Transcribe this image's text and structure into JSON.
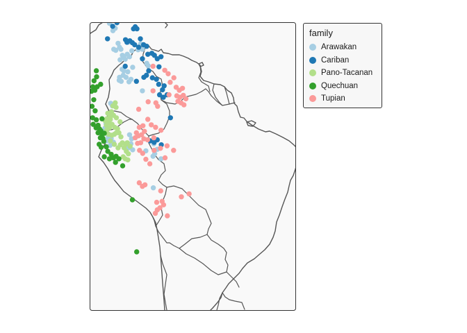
{
  "legend": {
    "title": "family",
    "items": [
      {
        "key": "arawakan",
        "label": "Arawakan",
        "color": "#a6cee3"
      },
      {
        "key": "cariban",
        "label": "Cariban",
        "color": "#1f78b4"
      },
      {
        "key": "pano",
        "label": "Pano-Tacanan",
        "color": "#b2df8a"
      },
      {
        "key": "quechuan",
        "label": "Quechuan",
        "color": "#33a02c"
      },
      {
        "key": "tupian",
        "label": "Tupian",
        "color": "#fb9a99"
      }
    ]
  },
  "map": {
    "panel_background": "#f9f9f9",
    "panel_border": "#333333",
    "land_outline": "#555555",
    "layers": [
      "coastline",
      "country-borders",
      "language-points"
    ]
  },
  "chart_data": {
    "type": "scatter",
    "title": "",
    "xlabel": "",
    "ylabel": "",
    "grid": false,
    "legend_position": "right-top",
    "legend_title": "family",
    "series": [
      {
        "name": "Arawakan",
        "color": "#a6cee3",
        "points": [
          [
            -73.0,
            11.3
          ],
          [
            -71.8,
            9.8
          ],
          [
            -71.0,
            10.3
          ],
          [
            -70.0,
            7.3
          ],
          [
            -71.5,
            6.1
          ],
          [
            -70.8,
            5.9
          ],
          [
            -69.5,
            6.5
          ],
          [
            -69.0,
            6.1
          ],
          [
            -68.5,
            4.9
          ],
          [
            -69.3,
            4.0
          ],
          [
            -68.0,
            4.5
          ],
          [
            -67.5,
            4.1
          ],
          [
            -66.8,
            5.1
          ],
          [
            -66.0,
            4.6
          ],
          [
            -65.2,
            5.8
          ],
          [
            -66.5,
            7.5
          ],
          [
            -63.0,
            6.0
          ],
          [
            -62.1,
            7.2
          ],
          [
            -61.5,
            6.1
          ],
          [
            -60.0,
            3.3
          ],
          [
            -59.5,
            2.8
          ],
          [
            -68.6,
            2.1
          ],
          [
            -68.0,
            1.8
          ],
          [
            -68.2,
            0.9
          ],
          [
            -69.5,
            0.5
          ],
          [
            -68.9,
            -0.3
          ],
          [
            -69.6,
            -0.1
          ],
          [
            -66.6,
            1.6
          ],
          [
            -67.2,
            0.5
          ],
          [
            -66.2,
            -0.4
          ],
          [
            -65.5,
            0.1
          ],
          [
            -64.9,
            2.5
          ],
          [
            -72.6,
            -4.7
          ],
          [
            -72.0,
            -5.2
          ],
          [
            -74.2,
            -8.8
          ],
          [
            -74.6,
            -9.7
          ],
          [
            -75.1,
            -10.3
          ],
          [
            -73.8,
            -10.7
          ],
          [
            -73.4,
            -11.3
          ],
          [
            -74.0,
            -12.2
          ],
          [
            -72.4,
            -11.7
          ],
          [
            -71.6,
            -12.5
          ],
          [
            -72.8,
            -13.1
          ],
          [
            -66.0,
            -11.0
          ],
          [
            -65.3,
            -11.8
          ],
          [
            -66.3,
            -13.6
          ],
          [
            -64.9,
            -14.0
          ],
          [
            -60.3,
            -14.2
          ],
          [
            -57.5,
            -12.8
          ],
          [
            -57.8,
            -15.3
          ],
          [
            -55.0,
            -15.8
          ],
          [
            -57.7,
            -21.6
          ],
          [
            -61.5,
            -2.2
          ],
          [
            -57.2,
            -14.8
          ],
          [
            -56.3,
            -13.9
          ],
          [
            -65.5,
            -12.8
          ]
        ]
      },
      {
        "name": "Cariban",
        "color": "#1f78b4",
        "points": [
          [
            -71.9,
            10.7
          ],
          [
            -70.4,
            11.4
          ],
          [
            -69.1,
            11.9
          ],
          [
            -64.6,
            10.2
          ],
          [
            -64.0,
            10.6
          ],
          [
            -63.4,
            10.2
          ],
          [
            -73.7,
            8.2
          ],
          [
            -67.4,
            8.0
          ],
          [
            -66.9,
            7.5
          ],
          [
            -65.9,
            7.8
          ],
          [
            -65.0,
            7.4
          ],
          [
            -64.2,
            7.0
          ],
          [
            -62.2,
            8.2
          ],
          [
            -61.1,
            7.0
          ],
          [
            -60.0,
            6.7
          ],
          [
            -62.8,
            6.5
          ],
          [
            -61.5,
            4.2
          ],
          [
            -59.6,
            5.1
          ],
          [
            -58.2,
            5.3
          ],
          [
            -57.3,
            4.9
          ],
          [
            -56.3,
            4.2
          ],
          [
            -55.7,
            2.6
          ],
          [
            -55.0,
            4.6
          ],
          [
            -59.3,
            1.8
          ],
          [
            -61.0,
            0.5
          ],
          [
            -60.1,
            0.9
          ],
          [
            -58.0,
            0.4
          ],
          [
            -56.6,
            0.1
          ],
          [
            -55.8,
            -0.9
          ],
          [
            -53.9,
            -1.2
          ],
          [
            -55.5,
            -3.0
          ],
          [
            -54.2,
            -3.5
          ],
          [
            -51.7,
            -7.6
          ],
          [
            -63.6,
            -0.3
          ],
          [
            -54.9,
            -13.0
          ],
          [
            -56.3,
            -12.0
          ],
          [
            -57.4,
            -12.5
          ],
          [
            -58.8,
            -12.2
          ],
          [
            -67.5,
            2.7
          ],
          [
            -54.5,
            -2.0
          ],
          [
            -52.9,
            -3.0
          ]
        ]
      },
      {
        "name": "Pano-Tacanan",
        "color": "#b2df8a",
        "points": [
          [
            -71.8,
            -5.2
          ],
          [
            -71.0,
            -4.6
          ],
          [
            -70.7,
            -5.5
          ],
          [
            -72.3,
            -6.4
          ],
          [
            -73.6,
            -6.7
          ],
          [
            -72.9,
            -7.3
          ],
          [
            -73.9,
            -7.8
          ],
          [
            -72.7,
            -7.9
          ],
          [
            -71.6,
            -7.1
          ],
          [
            -74.1,
            -9.1
          ],
          [
            -73.1,
            -8.6
          ],
          [
            -74.5,
            -8.2
          ],
          [
            -73.0,
            -9.6
          ],
          [
            -72.1,
            -8.9
          ],
          [
            -71.2,
            -9.5
          ],
          [
            -70.2,
            -9.8
          ],
          [
            -69.7,
            -10.6
          ],
          [
            -70.6,
            -10.6
          ],
          [
            -71.3,
            -10.9
          ],
          [
            -72.2,
            -11.1
          ],
          [
            -69.0,
            -11.4
          ],
          [
            -68.5,
            -12.6
          ],
          [
            -67.4,
            -12.9
          ],
          [
            -66.8,
            -12.6
          ],
          [
            -67.9,
            -13.6
          ],
          [
            -67.1,
            -14.3
          ],
          [
            -66.4,
            -14.8
          ],
          [
            -65.8,
            -13.3
          ],
          [
            -68.2,
            -15.4
          ],
          [
            -67.5,
            -15.8
          ],
          [
            -66.6,
            -16.0
          ],
          [
            -69.2,
            -13.0
          ],
          [
            -70.0,
            -13.6
          ],
          [
            -71.3,
            -12.9
          ],
          [
            -72.7,
            -12.2
          ],
          [
            -73.3,
            -10.9
          ],
          [
            -74.0,
            -10.1
          ],
          [
            -70.6,
            -7.6
          ],
          [
            -69.3,
            -8.4
          ]
        ]
      },
      {
        "name": "Quechuan",
        "color": "#33a02c",
        "points": [
          [
            -77.6,
            1.8
          ],
          [
            -77.5,
            0.6
          ],
          [
            -78.4,
            -0.2
          ],
          [
            -78.8,
            -1.4
          ],
          [
            -79.3,
            -2.3
          ],
          [
            -78.1,
            -2.1
          ],
          [
            -77.3,
            -1.4
          ],
          [
            -76.1,
            -0.9
          ],
          [
            -78.5,
            -4.0
          ],
          [
            -79.1,
            -5.3
          ],
          [
            -78.0,
            -6.2
          ],
          [
            -78.9,
            -7.6
          ],
          [
            -77.6,
            -8.0
          ],
          [
            -78.7,
            -8.9
          ],
          [
            -77.7,
            -9.6
          ],
          [
            -77.0,
            -9.1
          ],
          [
            -76.5,
            -9.8
          ],
          [
            -77.0,
            -10.6
          ],
          [
            -76.0,
            -10.2
          ],
          [
            -75.6,
            -10.9
          ],
          [
            -76.2,
            -11.6
          ],
          [
            -75.3,
            -11.7
          ],
          [
            -75.0,
            -12.3
          ],
          [
            -76.6,
            -12.9
          ],
          [
            -75.9,
            -13.5
          ],
          [
            -74.1,
            -13.4
          ],
          [
            -73.6,
            -14.3
          ],
          [
            -72.4,
            -14.9
          ],
          [
            -71.6,
            -15.6
          ],
          [
            -70.7,
            -15.3
          ],
          [
            -69.7,
            -15.8
          ],
          [
            -70.9,
            -16.5
          ],
          [
            -68.4,
            -17.2
          ],
          [
            -74.8,
            -15.4
          ],
          [
            -73.0,
            -15.8
          ],
          [
            -65.0,
            -24.0
          ],
          [
            -63.5,
            -34.4
          ],
          [
            -75.6,
            -7.8
          ],
          [
            -74.8,
            -10.7
          ]
        ]
      },
      {
        "name": "Tupian",
        "color": "#fb9a99",
        "points": [
          [
            -57.8,
            2.7
          ],
          [
            -53.7,
            1.9
          ],
          [
            -52.5,
            1.2
          ],
          [
            -50.5,
            0.4
          ],
          [
            -51.8,
            -0.5
          ],
          [
            -49.7,
            -1.5
          ],
          [
            -48.6,
            -2.1
          ],
          [
            -47.5,
            -1.7
          ],
          [
            -49.5,
            -3.2
          ],
          [
            -48.4,
            -3.5
          ],
          [
            -47.2,
            -3.1
          ],
          [
            -46.3,
            -3.8
          ],
          [
            -49.1,
            -4.3
          ],
          [
            -48.0,
            -4.6
          ],
          [
            -47.0,
            -5.0
          ],
          [
            -52.2,
            -3.0
          ],
          [
            -59.5,
            -4.4
          ],
          [
            -56.2,
            -5.3
          ],
          [
            -57.8,
            -2.2
          ],
          [
            -62.6,
            -9.5
          ],
          [
            -61.3,
            -9.2
          ],
          [
            -60.8,
            -10.3
          ],
          [
            -61.8,
            -11.0
          ],
          [
            -62.9,
            -11.2
          ],
          [
            -63.6,
            -10.6
          ],
          [
            -61.0,
            -11.8
          ],
          [
            -62.1,
            -12.6
          ],
          [
            -63.2,
            -12.7
          ],
          [
            -64.0,
            -11.6
          ],
          [
            -59.7,
            -12.0
          ],
          [
            -58.4,
            -9.0
          ],
          [
            -56.9,
            -9.5
          ],
          [
            -55.0,
            -10.1
          ],
          [
            -57.5,
            -11.6
          ],
          [
            -52.9,
            -13.2
          ],
          [
            -50.6,
            -14.1
          ],
          [
            -53.6,
            -15.6
          ],
          [
            -62.5,
            -14.1
          ],
          [
            -61.4,
            -14.7
          ],
          [
            -60.3,
            -15.9
          ],
          [
            -58.9,
            -16.8
          ],
          [
            -62.6,
            -20.6
          ],
          [
            -61.5,
            -21.3
          ],
          [
            -60.6,
            -21.0
          ],
          [
            -55.1,
            -22.2
          ],
          [
            -54.6,
            -24.3
          ],
          [
            -56.5,
            -24.5
          ],
          [
            -55.4,
            -25.6
          ],
          [
            -56.3,
            -26.0
          ],
          [
            -57.0,
            -26.7
          ],
          [
            -52.8,
            -27.2
          ],
          [
            -54.1,
            -25.0
          ],
          [
            -47.9,
            -23.4
          ],
          [
            -45.2,
            -22.8
          ],
          [
            -62.8,
            -5.9
          ],
          [
            -56.8,
            -4.6
          ],
          [
            -59.6,
            -7.9
          ],
          [
            -57.4,
            -14.1
          ],
          [
            -55.2,
            -13.7
          ]
        ]
      }
    ]
  }
}
